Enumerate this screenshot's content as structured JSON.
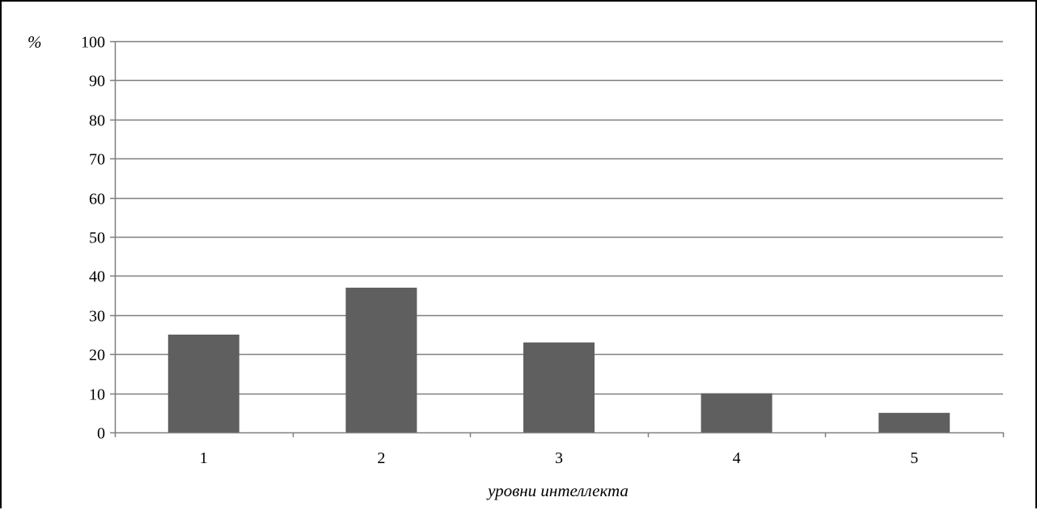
{
  "chart_data": {
    "type": "bar",
    "categories": [
      "1",
      "2",
      "3",
      "4",
      "5"
    ],
    "values": [
      25,
      37,
      23,
      10,
      5
    ],
    "title": "",
    "xlabel": "уровни интеллекта",
    "ylabel": "%",
    "ylim": [
      0,
      100
    ],
    "yticks": [
      0,
      10,
      20,
      30,
      40,
      50,
      60,
      70,
      80,
      90,
      100
    ],
    "grid": true,
    "legend": "none",
    "colors": {
      "bar": "#5f5f5f",
      "grid": "#7f7f7f",
      "axis": "#7f7f7f",
      "frame": "#000000",
      "text": "#000000"
    }
  }
}
